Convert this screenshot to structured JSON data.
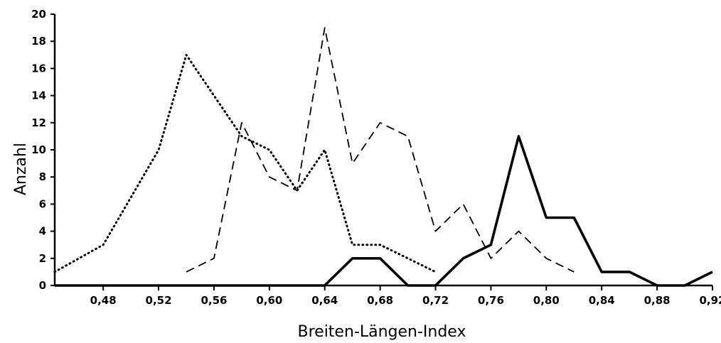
{
  "chart_data": {
    "type": "line",
    "title": "",
    "xlabel": "Breiten-Längen-Index",
    "ylabel": "Anzahl",
    "xlim": [
      0.445,
      0.92
    ],
    "ylim": [
      0,
      20
    ],
    "x_ticks": [
      0.48,
      0.52,
      0.56,
      0.6,
      0.64,
      0.68,
      0.72,
      0.76,
      0.8,
      0.84,
      0.88,
      0.92
    ],
    "x_tick_labels": [
      "0,48",
      "0,52",
      "0,56",
      "0,60",
      "0,64",
      "0,68",
      "0,72",
      "0,76",
      "0,80",
      "0,84",
      "0,88",
      "0,92"
    ],
    "y_ticks": [
      0,
      2,
      4,
      6,
      8,
      10,
      12,
      14,
      16,
      18,
      20
    ],
    "y_tick_labels": [
      "0",
      "2",
      "4",
      "6",
      "8",
      "10",
      "12",
      "14",
      "16",
      "18",
      "20"
    ],
    "grid": false,
    "legend": "none",
    "series": [
      {
        "style": "dotted",
        "x": [
          0.445,
          0.48,
          0.52,
          0.54,
          0.56,
          0.58,
          0.6,
          0.62,
          0.64,
          0.66,
          0.68,
          0.7,
          0.72
        ],
        "y": [
          1,
          3,
          10,
          17,
          14,
          11,
          10,
          7,
          10,
          3,
          3,
          2,
          1
        ]
      },
      {
        "style": "dashed",
        "x": [
          0.54,
          0.56,
          0.58,
          0.6,
          0.62,
          0.64,
          0.66,
          0.68,
          0.7,
          0.72,
          0.74,
          0.76,
          0.78,
          0.8,
          0.82
        ],
        "y": [
          1,
          2,
          12,
          8,
          7,
          19,
          9,
          12,
          11,
          4,
          6,
          2,
          4,
          2,
          1
        ]
      },
      {
        "style": "solid",
        "x": [
          0.445,
          0.64,
          0.66,
          0.68,
          0.7,
          0.72,
          0.74,
          0.76,
          0.78,
          0.8,
          0.82,
          0.84,
          0.86,
          0.88,
          0.9,
          0.92
        ],
        "y": [
          0,
          0,
          2,
          2,
          0,
          0,
          2,
          3,
          11,
          5,
          5,
          1,
          1,
          0,
          0,
          1
        ]
      }
    ]
  }
}
